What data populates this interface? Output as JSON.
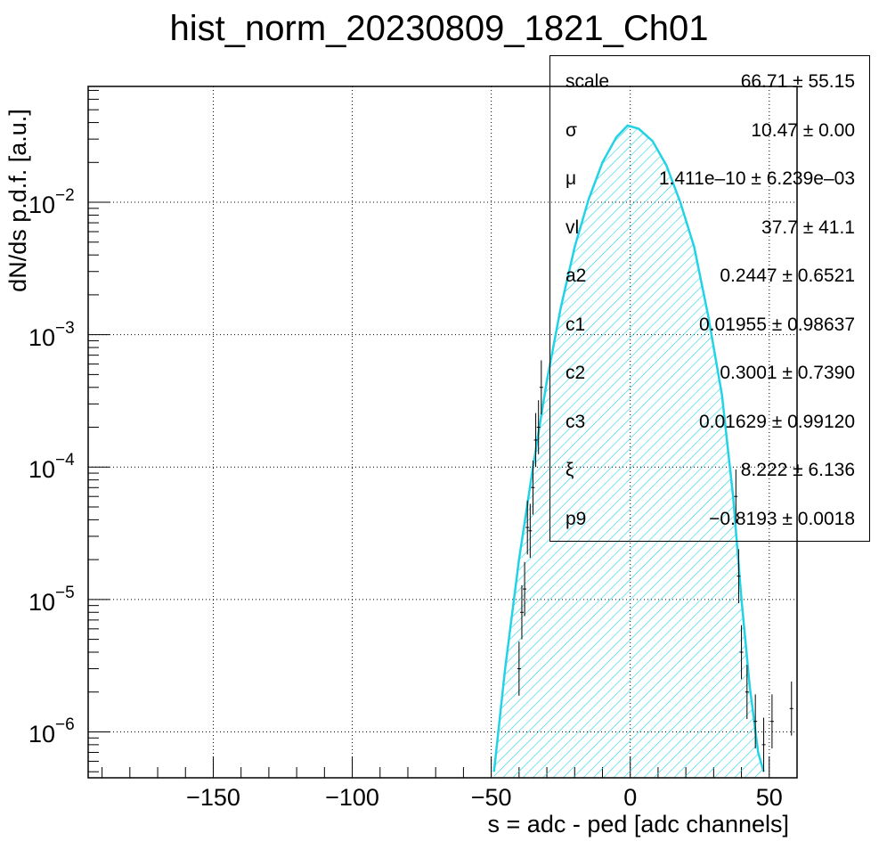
{
  "chart_data": {
    "type": "area",
    "title": "hist_norm_20230809_1821_Ch01",
    "xlabel": "s = adc - ped [adc channels]",
    "ylabel": "dN/ds p.d.f. [a.u.]",
    "xlim": [
      -195,
      60
    ],
    "ylim": [
      4.5e-07,
      0.075
    ],
    "yscale": "log",
    "grid": true,
    "x_ticks": [
      "−150",
      "−100",
      "−50",
      "0",
      "50"
    ],
    "x_tick_values": [
      -150,
      -100,
      -50,
      0,
      50
    ],
    "y_ticks": [
      {
        "base": "10",
        "exp": "−2",
        "value": 0.01
      },
      {
        "base": "10",
        "exp": "−3",
        "value": 0.001
      },
      {
        "base": "10",
        "exp": "−4",
        "value": 0.0001
      },
      {
        "base": "10",
        "exp": "−5",
        "value": 1e-05
      },
      {
        "base": "10",
        "exp": "−6",
        "value": 1e-06
      }
    ],
    "fit_curve": {
      "color": "#22d3e6",
      "fill": "hatched-cyan",
      "points": [
        [
          -49,
          5e-07
        ],
        [
          -45,
          3e-06
        ],
        [
          -40,
          2e-05
        ],
        [
          -35,
          0.0001
        ],
        [
          -30,
          0.00045
        ],
        [
          -25,
          0.0016
        ],
        [
          -20,
          0.0046
        ],
        [
          -15,
          0.0105
        ],
        [
          -10,
          0.02
        ],
        [
          -5,
          0.031
        ],
        [
          -1,
          0.038
        ],
        [
          3,
          0.036
        ],
        [
          8,
          0.029
        ],
        [
          13,
          0.019
        ],
        [
          18,
          0.01
        ],
        [
          23,
          0.0046
        ],
        [
          28,
          0.0014
        ],
        [
          33,
          0.00035
        ],
        [
          37,
          6e-05
        ],
        [
          40,
          1e-05
        ],
        [
          43,
          2.2e-06
        ],
        [
          46,
          7e-07
        ],
        [
          48,
          5e-07
        ]
      ]
    },
    "data_points": [
      [
        -40,
        3e-06
      ],
      [
        -39,
        8e-06
      ],
      [
        -38,
        1.2e-05
      ],
      [
        -37,
        3.5e-05
      ],
      [
        -36,
        3.3e-05
      ],
      [
        -35,
        7e-05
      ],
      [
        -34,
        0.00016
      ],
      [
        -33,
        0.0002
      ],
      [
        -32,
        0.0004
      ],
      [
        38,
        6e-05
      ],
      [
        39,
        1.5e-05
      ],
      [
        40,
        4e-06
      ],
      [
        42,
        2e-06
      ],
      [
        45,
        1.2e-06
      ],
      [
        48,
        8e-07
      ],
      [
        51,
        1.2e-06
      ],
      [
        58,
        1.5e-06
      ]
    ],
    "stats_box": {
      "rows": [
        {
          "name": "scale",
          "value": "66.71 ± 55.15"
        },
        {
          "name": "σ",
          "value": "10.47 ± 0.00"
        },
        {
          "name": "μ",
          "value": "1.411e–10 ± 6.239e–03"
        },
        {
          "name": "vl",
          "value": "37.7 ± 41.1"
        },
        {
          "name": "a2",
          "value": "0.2447 ± 0.6521"
        },
        {
          "name": "c1",
          "value": "0.01955 ± 0.98637"
        },
        {
          "name": "c2",
          "value": "0.3001 ± 0.7390"
        },
        {
          "name": "c3",
          "value": "0.01629 ± 0.99120"
        },
        {
          "name": "ξ",
          "value": "8.222 ± 6.136"
        },
        {
          "name": "p9",
          "value": "−0.8193 ± 0.0018"
        }
      ]
    }
  }
}
